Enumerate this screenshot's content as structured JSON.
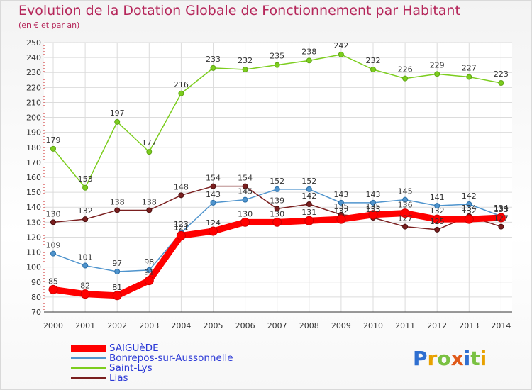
{
  "title": "Evolution de la Dotation Globale de Fonctionnement par Habitant",
  "subtitle": "(en € et par an)",
  "logo": "Proxiti",
  "chart_data": {
    "type": "line",
    "title": "Evolution de la Dotation Globale de Fonctionnement par Habitant",
    "subtitle": "(en € et par an)",
    "xlabel": "",
    "ylabel": "",
    "categories": [
      "2000",
      "2001",
      "2002",
      "2003",
      "2004",
      "2005",
      "2006",
      "2007",
      "2008",
      "2009",
      "2010",
      "2011",
      "2012",
      "2013",
      "2014"
    ],
    "ylim": [
      70,
      250
    ],
    "yticks": [
      70,
      80,
      90,
      100,
      110,
      120,
      130,
      140,
      150,
      160,
      170,
      180,
      190,
      200,
      210,
      220,
      230,
      240,
      250
    ],
    "grid": true,
    "legend_position": "bottom-left",
    "series": [
      {
        "name": "SAIGUèDE",
        "color": "#ff0000",
        "values": [
          85,
          82,
          81,
          91,
          121,
          124,
          130,
          130,
          131,
          132,
          135,
          136,
          132,
          132,
          133
        ]
      },
      {
        "name": "Bonrepos-sur-Aussonnelle",
        "color": "#4f94cd",
        "values": [
          109,
          101,
          97,
          98,
          123,
          143,
          145,
          152,
          152,
          143,
          143,
          145,
          141,
          142,
          134
        ]
      },
      {
        "name": "Saint-Lys",
        "color": "#7ccd1e",
        "values": [
          179,
          153,
          197,
          177,
          216,
          233,
          232,
          235,
          238,
          242,
          232,
          226,
          229,
          227,
          223
        ]
      },
      {
        "name": "Lias",
        "color": "#7a1f1f",
        "values": [
          130,
          132,
          138,
          138,
          148,
          154,
          154,
          139,
          142,
          135,
          133,
          127,
          125,
          134,
          127
        ]
      }
    ]
  }
}
